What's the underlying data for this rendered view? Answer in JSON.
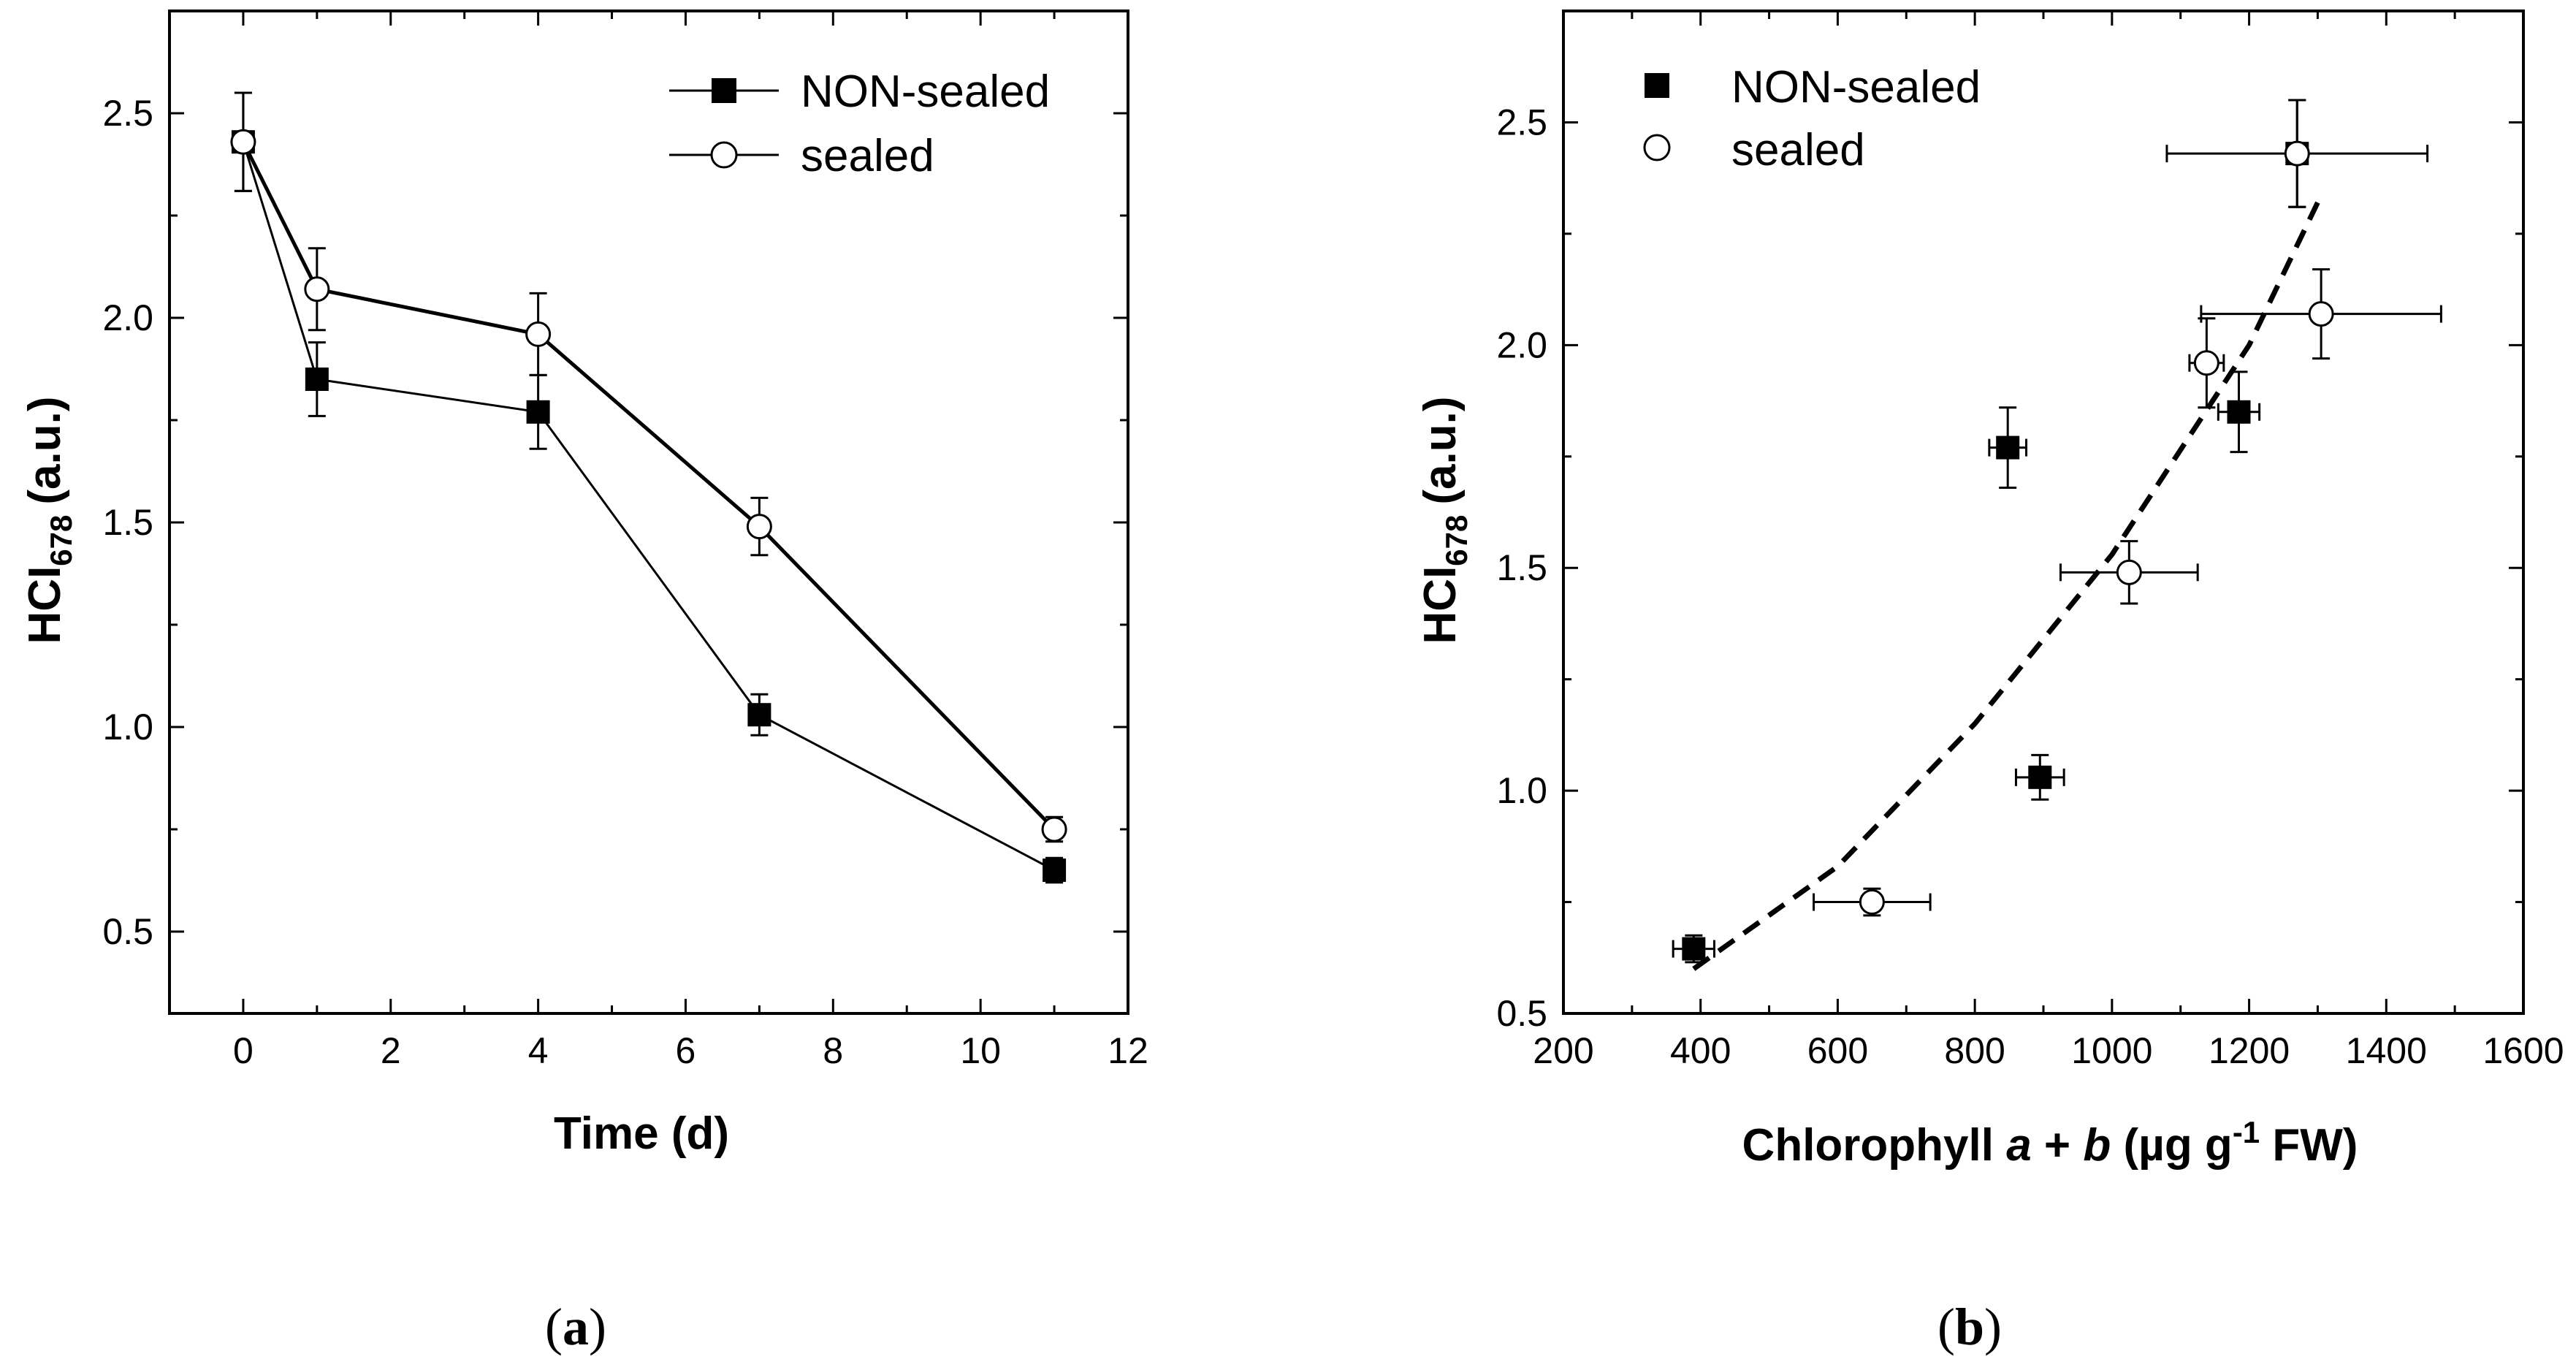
{
  "colors": {
    "ink": "#000000",
    "background": "#ffffff",
    "open_marker_fill": "#ffffff"
  },
  "chart_data": [
    {
      "panel": "(a)",
      "panel_parts": {
        "open": "(",
        "letter": "a",
        "close": ")"
      },
      "type": "line",
      "title": "",
      "xlabel": "Time (d)",
      "ylabel": {
        "main": "HCI",
        "sub": "678",
        "unit": "(a.u.)"
      },
      "xlim": [
        -1,
        12
      ],
      "ylim": [
        0.3,
        2.75
      ],
      "xticks": [
        0,
        2,
        4,
        6,
        8,
        10,
        12
      ],
      "yticks": [
        0.5,
        1.0,
        1.5,
        2.0,
        2.5
      ],
      "xtick_labels": [
        "0",
        "2",
        "4",
        "6",
        "8",
        "10",
        "12"
      ],
      "ytick_labels": [
        "0.5",
        "1.0",
        "1.5",
        "2.0",
        "2.5"
      ],
      "legend_position": "top-right",
      "series": [
        {
          "name": "NON-sealed",
          "marker": "filled-square",
          "x": [
            0,
            1,
            4,
            7,
            11
          ],
          "y": [
            2.43,
            1.85,
            1.77,
            1.03,
            0.65
          ],
          "yerr": [
            0.12,
            0.09,
            0.09,
            0.05,
            0.03
          ]
        },
        {
          "name": "sealed",
          "marker": "open-circle",
          "x": [
            0,
            1,
            4,
            7,
            11
          ],
          "y": [
            2.43,
            2.07,
            1.96,
            1.49,
            0.75
          ],
          "yerr": [
            0.12,
            0.1,
            0.1,
            0.07,
            0.03
          ]
        }
      ]
    },
    {
      "panel": "(b)",
      "panel_parts": {
        "open": "(",
        "letter": "b",
        "close": ")"
      },
      "type": "scatter",
      "title": "",
      "xlabel": {
        "pre": "Chlorophyll ",
        "a": "a",
        "plus": " + ",
        "b": "b",
        "unit_pre": " (µg g",
        "sup": "-1",
        "unit_post": " FW)"
      },
      "ylabel": {
        "main": "HCI",
        "sub": "678",
        "unit": "(a.u.)"
      },
      "xlim": [
        200,
        1600
      ],
      "ylim": [
        0.5,
        2.75
      ],
      "xticks": [
        200,
        400,
        600,
        800,
        1000,
        1200,
        1400,
        1600
      ],
      "yticks": [
        0.5,
        1.0,
        1.5,
        2.0,
        2.5
      ],
      "xtick_labels": [
        "200",
        "400",
        "600",
        "800",
        "1000",
        "1200",
        "1400",
        "1600"
      ],
      "ytick_labels": [
        "0.5",
        "1.0",
        "1.5",
        "2.0",
        "2.5"
      ],
      "legend_position": "top-left",
      "series": [
        {
          "name": "NON-sealed",
          "marker": "filled-square",
          "x": [
            390,
            848,
            895,
            1185,
            1270
          ],
          "y": [
            0.645,
            1.77,
            1.03,
            1.85,
            2.43
          ],
          "xerr": [
            30,
            27,
            35,
            30,
            190
          ],
          "yerr": [
            0.03,
            0.09,
            0.05,
            0.09,
            0.12
          ]
        },
        {
          "name": "sealed",
          "marker": "open-circle",
          "x": [
            650,
            1025,
            1138,
            1305,
            1270
          ],
          "y": [
            0.75,
            1.49,
            1.96,
            2.07,
            2.43
          ],
          "xerr": [
            85,
            100,
            25,
            175,
            0
          ],
          "yerr": [
            0.03,
            0.07,
            0.1,
            0.1,
            0.12
          ]
        }
      ],
      "fit": {
        "style": "dashed",
        "x": [
          390,
          600,
          800,
          1000,
          1200,
          1300
        ],
        "y": [
          0.6,
          0.83,
          1.15,
          1.53,
          2.0,
          2.32
        ]
      }
    }
  ]
}
